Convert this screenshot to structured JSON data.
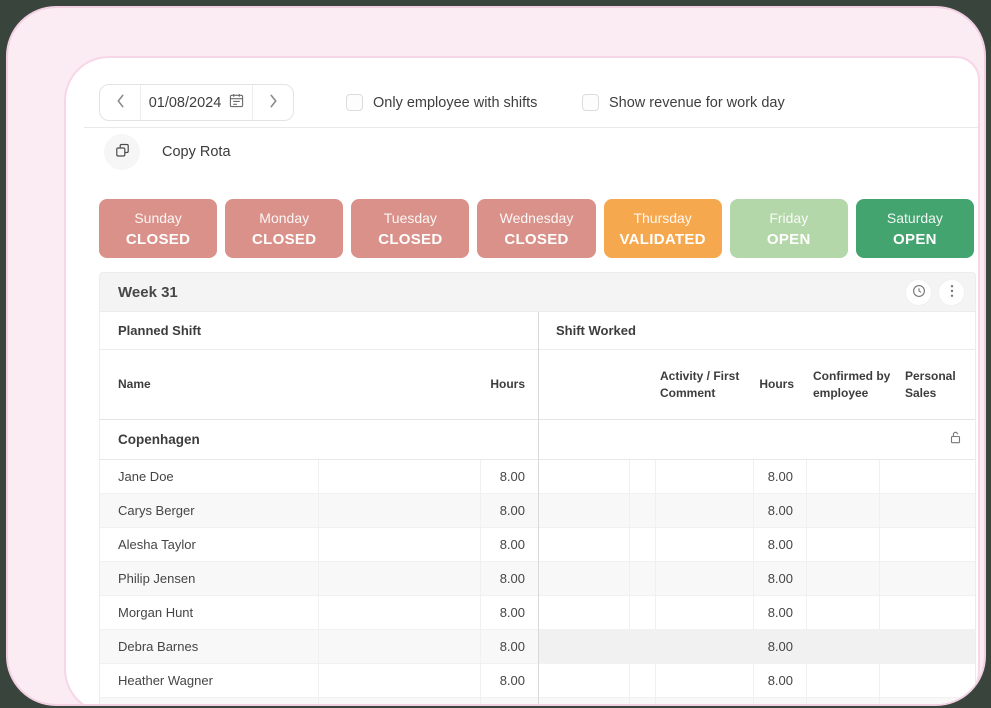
{
  "window": {
    "bg_outer": "#39453c",
    "frame_fill": "#fbebf3",
    "frame_border": "#f2cfe1",
    "card_border": "#f6d7e7"
  },
  "toolbar": {
    "date_nav": {
      "value": "01/08/2024",
      "prev_icon": "chevron-left",
      "next_icon": "chevron-right",
      "calendar_icon": "calendar"
    },
    "filters": [
      {
        "label": "Only employee with shifts",
        "checked": false
      },
      {
        "label": "Show revenue for work day",
        "checked": false
      }
    ],
    "copy_rota": {
      "label": "Copy Rota",
      "icon": "copy"
    }
  },
  "days": [
    {
      "name": "Sunday",
      "status": "CLOSED",
      "color": "#d9918a"
    },
    {
      "name": "Monday",
      "status": "CLOSED",
      "color": "#d9918a"
    },
    {
      "name": "Tuesday",
      "status": "CLOSED",
      "color": "#d9918a"
    },
    {
      "name": "Wednesday",
      "status": "CLOSED",
      "color": "#d9918a"
    },
    {
      "name": "Thursday",
      "status": "VALIDATED",
      "color": "#f6a84f"
    },
    {
      "name": "Friday",
      "status": "OPEN",
      "color": "#b4d7a9"
    },
    {
      "name": "Saturday",
      "status": "OPEN",
      "color": "#43a46f"
    }
  ],
  "week_bar": {
    "title": "Week 31",
    "icons": [
      "clock",
      "kebab-menu"
    ]
  },
  "table": {
    "group_headers": {
      "planned": "Planned Shift",
      "worked": "Shift Worked"
    },
    "headers": {
      "name": "Name",
      "planned_hours": "Hours",
      "activity": "Activity / First Comment",
      "worked_hours": "Hours",
      "confirmed": "Confirmed by employee",
      "personal_sales": "Personal Sales"
    },
    "section": {
      "name": "Copenhagen",
      "lock_icon": "padlock"
    },
    "rows": [
      {
        "name": "Jane Doe",
        "planned_hours": "8.00",
        "worked_hours": "8.00"
      },
      {
        "name": "Carys Berger",
        "planned_hours": "8.00",
        "worked_hours": "8.00"
      },
      {
        "name": "Alesha Taylor",
        "planned_hours": "8.00",
        "worked_hours": "8.00"
      },
      {
        "name": "Philip Jensen",
        "planned_hours": "8.00",
        "worked_hours": "8.00"
      },
      {
        "name": "Morgan Hunt",
        "planned_hours": "8.00",
        "worked_hours": "8.00"
      },
      {
        "name": "Debra Barnes",
        "planned_hours": "8.00",
        "worked_hours": "8.00",
        "worked_highlight": true
      },
      {
        "name": "Heather Wagner",
        "planned_hours": "8.00",
        "worked_hours": "8.00"
      }
    ]
  }
}
